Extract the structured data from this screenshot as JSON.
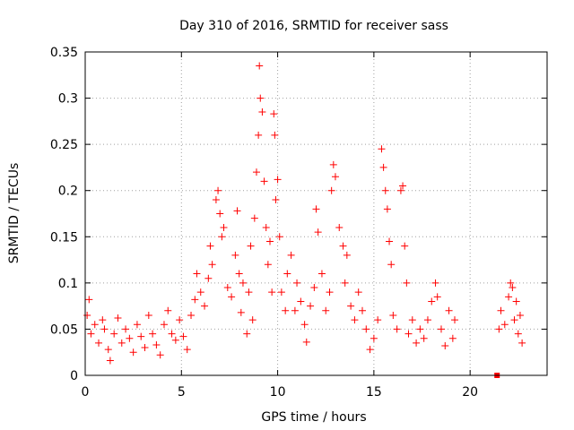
{
  "chart_data": {
    "type": "scatter",
    "title": "Day 310 of 2016, SRMTID for receiver sass",
    "xlabel": "GPS time / hours",
    "ylabel": "SRMTID / TECUs",
    "xlim": [
      0,
      24
    ],
    "ylim": [
      0,
      0.35
    ],
    "xticks": [
      0,
      5,
      10,
      15,
      20
    ],
    "xtick_labels": [
      "0",
      "5",
      "10",
      "15",
      "20"
    ],
    "yticks": [
      0,
      0.05,
      0.1,
      0.15,
      0.2,
      0.25,
      0.3,
      0.35
    ],
    "ytick_labels": [
      "0",
      "0.05",
      "0.1",
      "0.15",
      "0.2",
      "0.25",
      "0.3",
      "0.35"
    ],
    "grid": true,
    "marker": "+",
    "color": "#ff0000",
    "series": [
      {
        "name": "SRMTID",
        "points": [
          [
            0.1,
            0.065
          ],
          [
            0.2,
            0.082
          ],
          [
            0.3,
            0.045
          ],
          [
            0.5,
            0.055
          ],
          [
            0.7,
            0.035
          ],
          [
            0.9,
            0.06
          ],
          [
            1.0,
            0.05
          ],
          [
            1.2,
            0.028
          ],
          [
            1.3,
            0.016
          ],
          [
            1.5,
            0.045
          ],
          [
            1.7,
            0.062
          ],
          [
            1.9,
            0.035
          ],
          [
            2.1,
            0.05
          ],
          [
            2.3,
            0.04
          ],
          [
            2.5,
            0.025
          ],
          [
            2.7,
            0.055
          ],
          [
            2.9,
            0.042
          ],
          [
            3.1,
            0.03
          ],
          [
            3.3,
            0.065
          ],
          [
            3.5,
            0.045
          ],
          [
            3.7,
            0.033
          ],
          [
            3.9,
            0.022
          ],
          [
            4.1,
            0.055
          ],
          [
            4.3,
            0.07
          ],
          [
            4.5,
            0.045
          ],
          [
            4.7,
            0.038
          ],
          [
            4.9,
            0.06
          ],
          [
            5.1,
            0.042
          ],
          [
            5.3,
            0.028
          ],
          [
            5.5,
            0.065
          ],
          [
            5.7,
            0.082
          ],
          [
            5.8,
            0.11
          ],
          [
            6.0,
            0.09
          ],
          [
            6.2,
            0.075
          ],
          [
            6.4,
            0.105
          ],
          [
            6.5,
            0.14
          ],
          [
            6.6,
            0.12
          ],
          [
            6.8,
            0.19
          ],
          [
            6.9,
            0.2
          ],
          [
            7.0,
            0.175
          ],
          [
            7.1,
            0.15
          ],
          [
            7.2,
            0.16
          ],
          [
            7.4,
            0.095
          ],
          [
            7.6,
            0.085
          ],
          [
            7.8,
            0.13
          ],
          [
            7.9,
            0.178
          ],
          [
            8.0,
            0.11
          ],
          [
            8.1,
            0.068
          ],
          [
            8.2,
            0.1
          ],
          [
            8.4,
            0.045
          ],
          [
            8.5,
            0.09
          ],
          [
            8.6,
            0.14
          ],
          [
            8.7,
            0.06
          ],
          [
            8.8,
            0.17
          ],
          [
            8.9,
            0.22
          ],
          [
            9.0,
            0.26
          ],
          [
            9.05,
            0.335
          ],
          [
            9.1,
            0.3
          ],
          [
            9.2,
            0.285
          ],
          [
            9.3,
            0.21
          ],
          [
            9.4,
            0.16
          ],
          [
            9.5,
            0.12
          ],
          [
            9.6,
            0.145
          ],
          [
            9.7,
            0.09
          ],
          [
            9.8,
            0.283
          ],
          [
            9.85,
            0.26
          ],
          [
            9.9,
            0.19
          ],
          [
            10.0,
            0.212
          ],
          [
            10.1,
            0.15
          ],
          [
            10.2,
            0.09
          ],
          [
            10.4,
            0.07
          ],
          [
            10.5,
            0.11
          ],
          [
            10.7,
            0.13
          ],
          [
            10.9,
            0.07
          ],
          [
            11.0,
            0.1
          ],
          [
            11.2,
            0.08
          ],
          [
            11.4,
            0.055
          ],
          [
            11.5,
            0.036
          ],
          [
            11.7,
            0.075
          ],
          [
            11.9,
            0.095
          ],
          [
            12.0,
            0.18
          ],
          [
            12.1,
            0.155
          ],
          [
            12.3,
            0.11
          ],
          [
            12.5,
            0.07
          ],
          [
            12.7,
            0.09
          ],
          [
            12.8,
            0.2
          ],
          [
            12.9,
            0.228
          ],
          [
            13.0,
            0.215
          ],
          [
            13.2,
            0.16
          ],
          [
            13.4,
            0.14
          ],
          [
            13.5,
            0.1
          ],
          [
            13.6,
            0.13
          ],
          [
            13.8,
            0.075
          ],
          [
            14.0,
            0.06
          ],
          [
            14.2,
            0.09
          ],
          [
            14.4,
            0.07
          ],
          [
            14.6,
            0.05
          ],
          [
            14.8,
            0.028
          ],
          [
            15.0,
            0.04
          ],
          [
            15.2,
            0.06
          ],
          [
            15.4,
            0.245
          ],
          [
            15.5,
            0.225
          ],
          [
            15.6,
            0.2
          ],
          [
            15.7,
            0.18
          ],
          [
            15.8,
            0.145
          ],
          [
            15.9,
            0.12
          ],
          [
            16.0,
            0.065
          ],
          [
            16.2,
            0.05
          ],
          [
            16.4,
            0.2
          ],
          [
            16.5,
            0.205
          ],
          [
            16.6,
            0.14
          ],
          [
            16.7,
            0.1
          ],
          [
            16.8,
            0.045
          ],
          [
            17.0,
            0.06
          ],
          [
            17.2,
            0.035
          ],
          [
            17.4,
            0.05
          ],
          [
            17.6,
            0.04
          ],
          [
            17.8,
            0.06
          ],
          [
            18.0,
            0.08
          ],
          [
            18.2,
            0.1
          ],
          [
            18.3,
            0.085
          ],
          [
            18.5,
            0.05
          ],
          [
            18.7,
            0.032
          ],
          [
            18.9,
            0.07
          ],
          [
            19.1,
            0.04
          ],
          [
            19.2,
            0.06
          ],
          [
            21.5,
            0.05
          ],
          [
            21.6,
            0.07
          ],
          [
            21.8,
            0.055
          ],
          [
            22.0,
            0.085
          ],
          [
            22.1,
            0.1
          ],
          [
            22.2,
            0.095
          ],
          [
            22.3,
            0.06
          ],
          [
            22.4,
            0.08
          ],
          [
            22.5,
            0.045
          ],
          [
            22.6,
            0.065
          ],
          [
            22.7,
            0.035
          ]
        ]
      },
      {
        "name": "marker",
        "marker": "square",
        "points": [
          [
            21.4,
            0.0
          ]
        ]
      }
    ]
  }
}
